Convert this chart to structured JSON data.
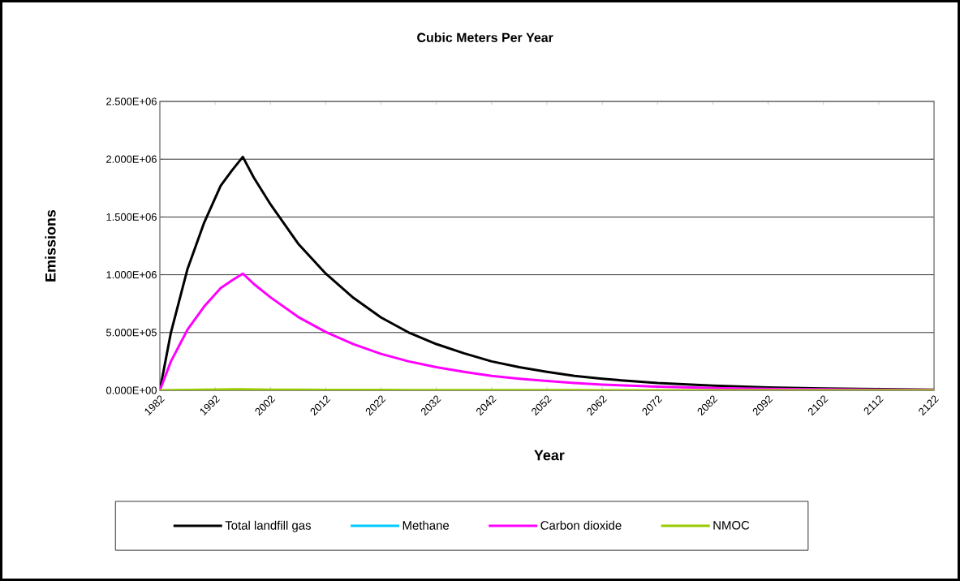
{
  "chart_data": {
    "type": "line",
    "title": "Cubic Meters Per Year",
    "xlabel": "Year",
    "ylabel": "Emissions",
    "x": [
      1982,
      1984,
      1987,
      1990,
      1993,
      1995,
      1997,
      1999,
      2002,
      2007,
      2012,
      2017,
      2022,
      2027,
      2032,
      2037,
      2042,
      2047,
      2052,
      2057,
      2062,
      2067,
      2072,
      2082,
      2092,
      2102,
      2112,
      2122
    ],
    "series": [
      {
        "name": "Total landfill gas",
        "color": "#000000",
        "values": [
          0,
          500000,
          1050000,
          1450000,
          1770000,
          1900000,
          2020000,
          1840000,
          1610000,
          1270000,
          1010000,
          800000,
          630000,
          500000,
          400000,
          320000,
          250000,
          200000,
          160000,
          125000,
          100000,
          80000,
          63000,
          40000,
          25000,
          16000,
          10000,
          6000
        ]
      },
      {
        "name": "Methane",
        "color": "#00ccff",
        "values": [
          null,
          null,
          null,
          null,
          null,
          null,
          null,
          null,
          null,
          null,
          null,
          null,
          null,
          null,
          null,
          null,
          null,
          null,
          null,
          null,
          null,
          null,
          null,
          null,
          null,
          null,
          null,
          null
        ]
      },
      {
        "name": "Carbon dioxide",
        "color": "#ff00ff",
        "values": [
          0,
          250000,
          525000,
          725000,
          885000,
          950000,
          1010000,
          920000,
          805000,
          635000,
          505000,
          400000,
          315000,
          250000,
          200000,
          160000,
          125000,
          100000,
          80000,
          63000,
          50000,
          40000,
          32000,
          20000,
          13000,
          8000,
          5000,
          3000
        ]
      },
      {
        "name": "NMOC",
        "color": "#99cc00",
        "values": [
          0,
          2000,
          4000,
          6000,
          7000,
          8000,
          8000,
          7000,
          6000,
          5000,
          4000,
          3000,
          3000,
          2000,
          2000,
          1000,
          1000,
          1000,
          1000,
          1000,
          0,
          0,
          0,
          0,
          0,
          0,
          0,
          0
        ]
      }
    ],
    "xlim": [
      1982,
      2122
    ],
    "xticks": [
      1982,
      1992,
      2002,
      2012,
      2022,
      2032,
      2042,
      2052,
      2062,
      2072,
      2082,
      2092,
      2102,
      2112,
      2122
    ],
    "ylim": [
      0,
      2500000
    ],
    "yticks": [
      {
        "value": 0,
        "label": "0.000E+00"
      },
      {
        "value": 500000,
        "label": "5.000E+05"
      },
      {
        "value": 1000000,
        "label": "1.000E+06"
      },
      {
        "value": 1500000,
        "label": "1.500E+06"
      },
      {
        "value": 2000000,
        "label": "2.000E+06"
      },
      {
        "value": 2500000,
        "label": "2.500E+06"
      }
    ],
    "grid": "y",
    "legend": "bottom",
    "marker": "none",
    "line_style": "solid"
  }
}
